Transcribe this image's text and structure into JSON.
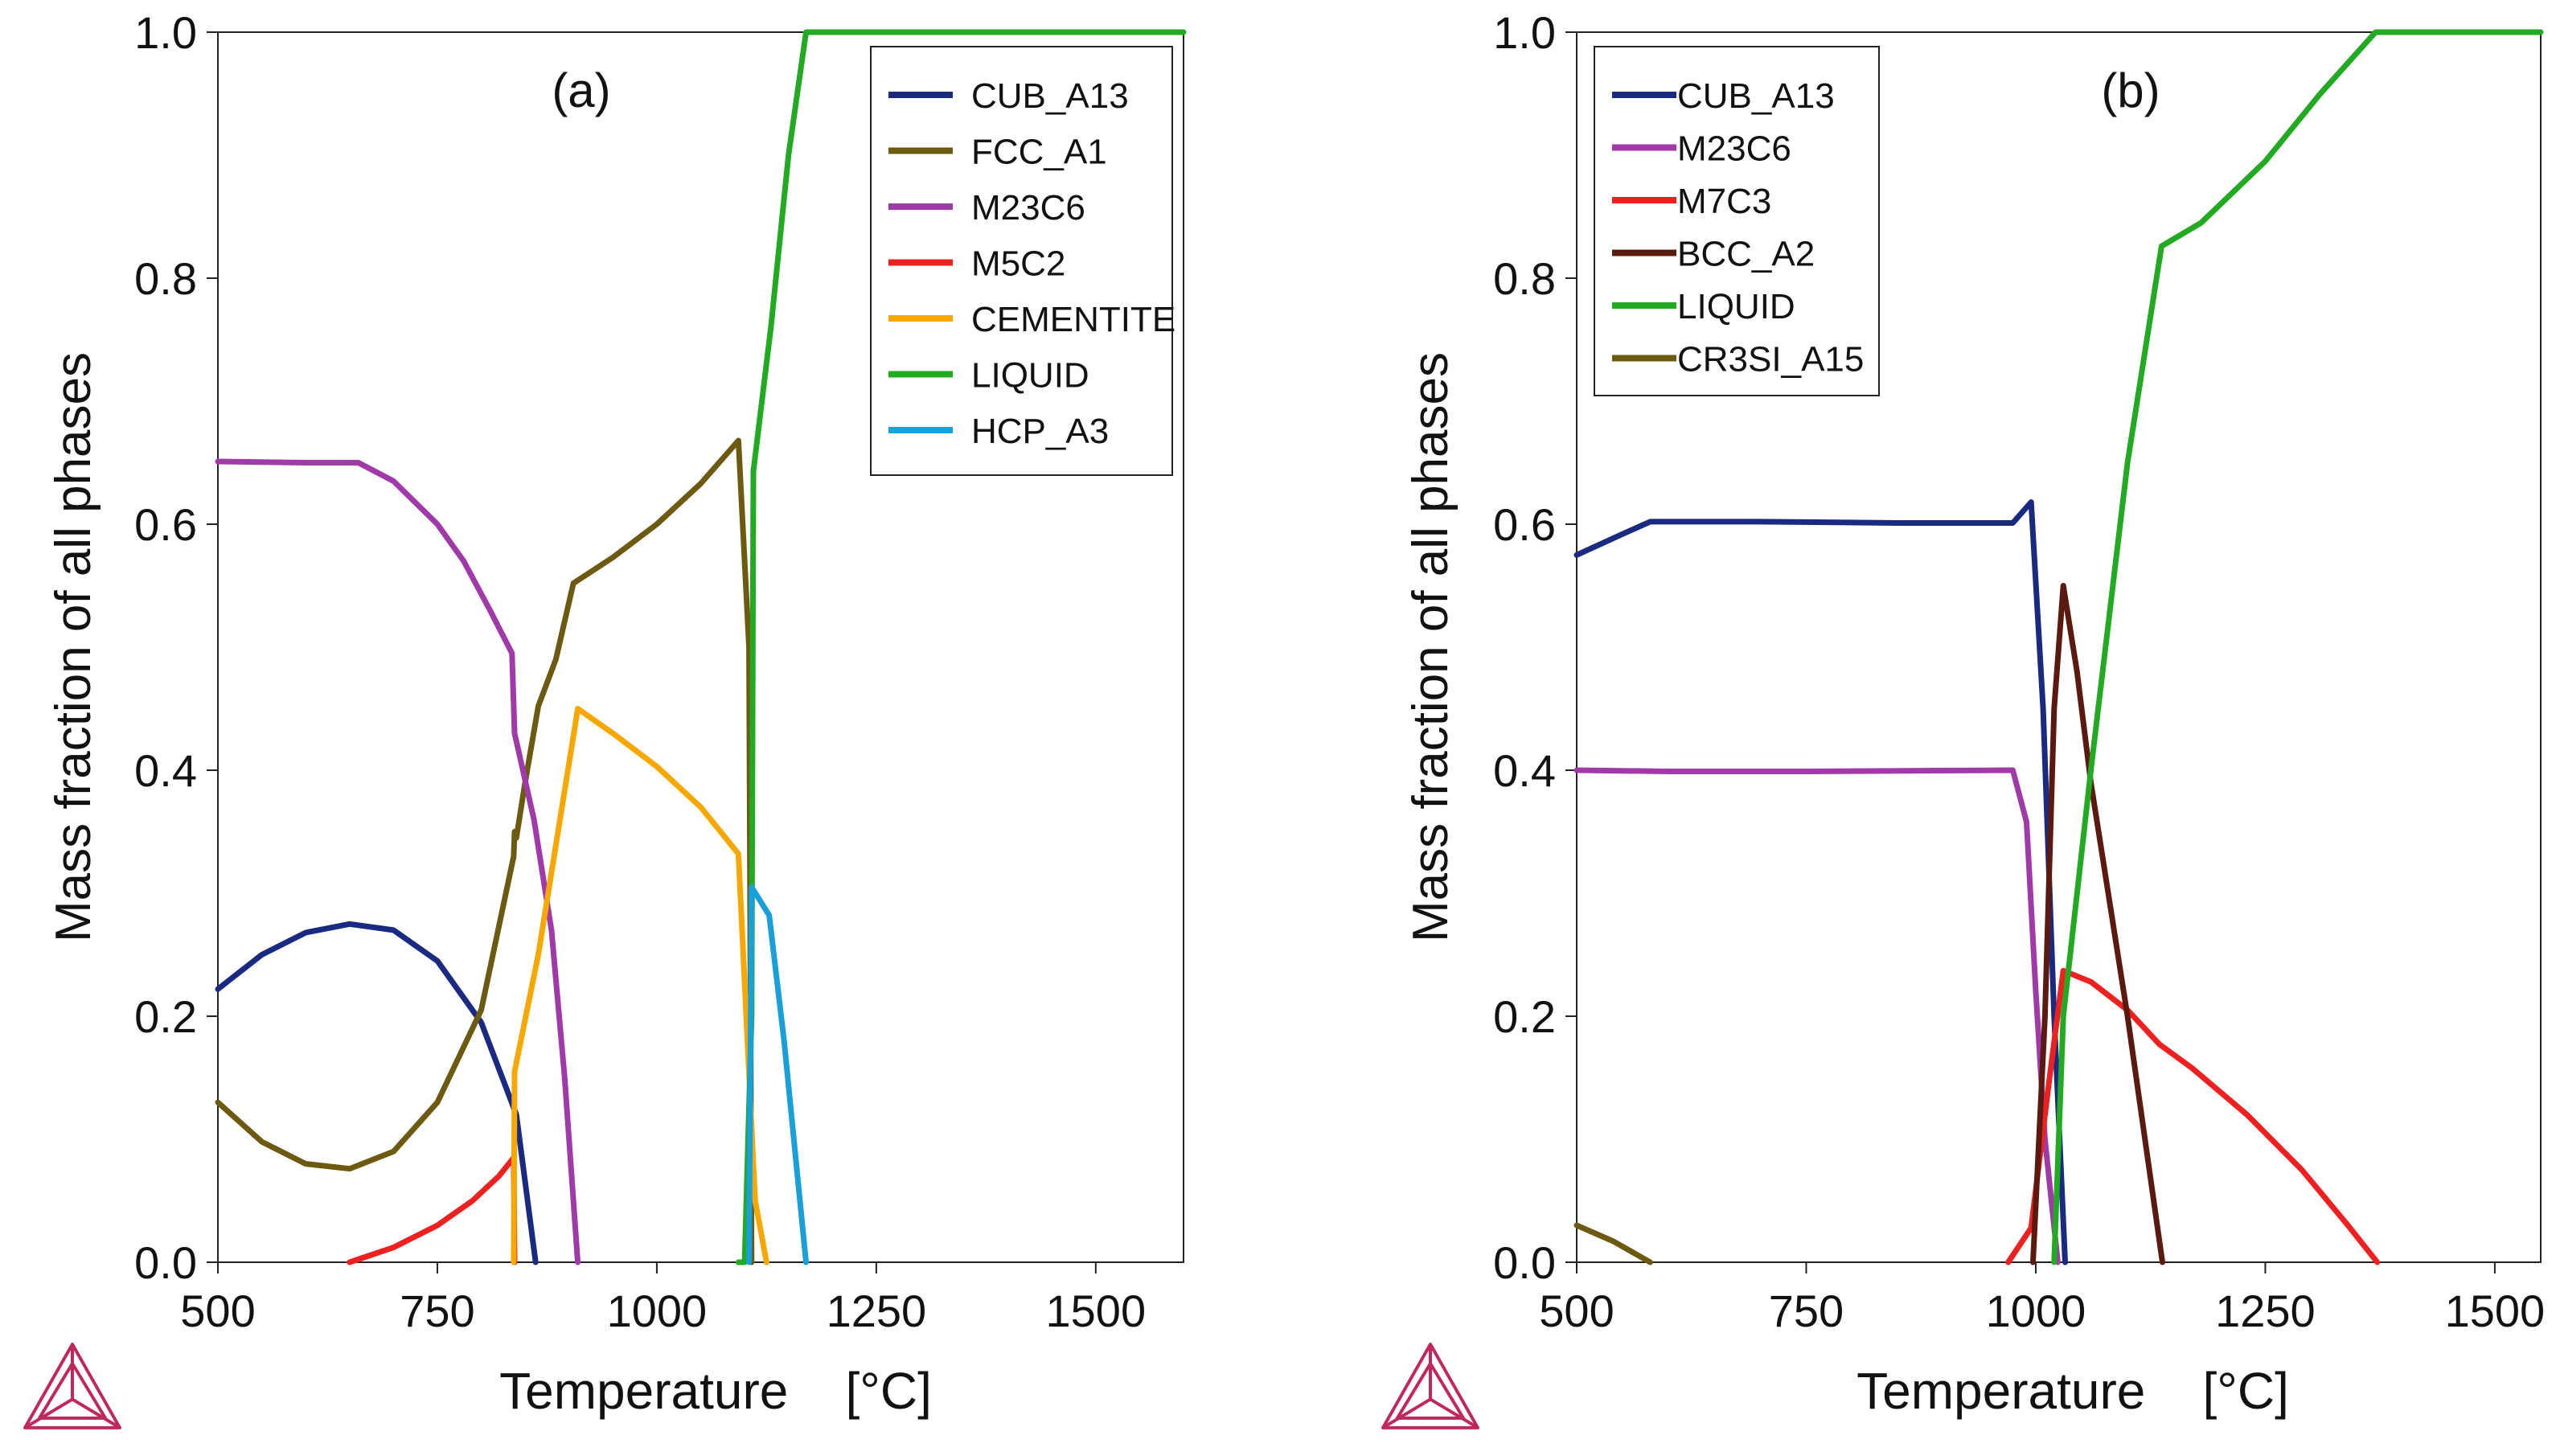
{
  "colors": {
    "CUB_A13": "#1a2a80",
    "FCC_A1": "#6b5a10",
    "M23C6": "#a03aa8",
    "M5C2": "#ee2020",
    "M7C3": "#ee2020",
    "CEMENTITE": "#f6a800",
    "LIQUID": "#22aa22",
    "HCP_A3": "#1aa0d8",
    "BCC_A2": "#5a1a10",
    "CR3SI_A15": "#6b5a10",
    "logo": "#c0285a"
  },
  "chart_data": [
    {
      "type": "line",
      "panel_label": "(a)",
      "xlabel": "Temperature    [°C]",
      "ylabel": "Mass fraction of all phases",
      "xlim": [
        500,
        1600
      ],
      "ylim": [
        0,
        1.0
      ],
      "xticks": [
        "500",
        "750",
        "1000",
        "1250",
        "1500"
      ],
      "xtick_values": [
        500,
        750,
        1000,
        1250,
        1500
      ],
      "yticks": [
        "0.0",
        "0.2",
        "0.4",
        "0.6",
        "0.8",
        "1.0"
      ],
      "ytick_values": [
        0,
        0.2,
        0.4,
        0.6,
        0.8,
        1.0
      ],
      "legend_position": "top-right",
      "series": [
        {
          "name": "CUB_A13",
          "points": [
            [
              500,
              0.222
            ],
            [
              550,
              0.25
            ],
            [
              600,
              0.268
            ],
            [
              650,
              0.275
            ],
            [
              700,
              0.27
            ],
            [
              750,
              0.245
            ],
            [
              800,
              0.195
            ],
            [
              840,
              0.12
            ],
            [
              862,
              0.0
            ]
          ]
        },
        {
          "name": "FCC_A1",
          "points": [
            [
              500,
              0.13
            ],
            [
              550,
              0.098
            ],
            [
              600,
              0.08
            ],
            [
              650,
              0.076
            ],
            [
              700,
              0.09
            ],
            [
              750,
              0.13
            ],
            [
              800,
              0.205
            ],
            [
              837,
              0.33
            ],
            [
              838,
              0.35
            ],
            [
              840,
              0.345
            ],
            [
              850,
              0.39
            ],
            [
              865,
              0.452
            ],
            [
              885,
              0.49
            ],
            [
              905,
              0.552
            ],
            [
              950,
              0.573
            ],
            [
              1000,
              0.6
            ],
            [
              1050,
              0.633
            ],
            [
              1093,
              0.668
            ],
            [
              1105,
              0.5
            ],
            [
              1108,
              0.0
            ]
          ]
        },
        {
          "name": "M23C6",
          "points": [
            [
              500,
              0.651
            ],
            [
              600,
              0.65
            ],
            [
              660,
              0.65
            ],
            [
              700,
              0.635
            ],
            [
              750,
              0.6
            ],
            [
              780,
              0.57
            ],
            [
              810,
              0.53
            ],
            [
              835,
              0.495
            ],
            [
              838,
              0.43
            ],
            [
              860,
              0.36
            ],
            [
              880,
              0.27
            ],
            [
              895,
              0.15
            ],
            [
              910,
              0.0
            ]
          ]
        },
        {
          "name": "M5C2",
          "points": [
            [
              650,
              0.0
            ],
            [
              700,
              0.012
            ],
            [
              750,
              0.03
            ],
            [
              790,
              0.05
            ],
            [
              820,
              0.07
            ],
            [
              837,
              0.085
            ],
            [
              838,
              0.0
            ]
          ]
        },
        {
          "name": "CEMENTITE",
          "points": [
            [
              837,
              0.0
            ],
            [
              838,
              0.155
            ],
            [
              865,
              0.25
            ],
            [
              910,
              0.45
            ],
            [
              950,
              0.43
            ],
            [
              1000,
              0.403
            ],
            [
              1050,
              0.37
            ],
            [
              1093,
              0.332
            ],
            [
              1112,
              0.05
            ],
            [
              1125,
              0.0
            ]
          ]
        },
        {
          "name": "LIQUID",
          "points": [
            [
              1093,
              0.0
            ],
            [
              1100,
              0.0
            ],
            [
              1108,
              0.2
            ],
            [
              1110,
              0.643
            ],
            [
              1130,
              0.76
            ],
            [
              1150,
              0.9
            ],
            [
              1170,
              1.0
            ],
            [
              1600,
              1.0
            ]
          ]
        },
        {
          "name": "HCP_A3",
          "points": [
            [
              1105,
              0.0
            ],
            [
              1108,
              0.305
            ],
            [
              1128,
              0.282
            ],
            [
              1145,
              0.18
            ],
            [
              1170,
              0.0
            ]
          ]
        }
      ]
    },
    {
      "type": "line",
      "panel_label": "(b)",
      "xlabel": "Temperature    [°C]",
      "ylabel": "Mass fraction of all phases",
      "xlim": [
        500,
        1550
      ],
      "ylim": [
        0,
        1.0
      ],
      "xticks": [
        "500",
        "750",
        "1000",
        "1250",
        "1500"
      ],
      "xtick_values": [
        500,
        750,
        1000,
        1250,
        1500
      ],
      "yticks": [
        "0.0",
        "0.2",
        "0.4",
        "0.6",
        "0.8",
        "1.0"
      ],
      "ytick_values": [
        0,
        0.2,
        0.4,
        0.6,
        0.8,
        1.0
      ],
      "legend_position": "top-left",
      "series": [
        {
          "name": "CUB_A13",
          "points": [
            [
              500,
              0.575
            ],
            [
              550,
              0.592
            ],
            [
              580,
              0.602
            ],
            [
              700,
              0.602
            ],
            [
              850,
              0.601
            ],
            [
              975,
              0.601
            ],
            [
              995,
              0.618
            ],
            [
              1008,
              0.45
            ],
            [
              1020,
              0.2
            ],
            [
              1032,
              0.0
            ]
          ]
        },
        {
          "name": "M23C6",
          "points": [
            [
              500,
              0.4
            ],
            [
              600,
              0.399
            ],
            [
              750,
              0.399
            ],
            [
              975,
              0.4
            ],
            [
              990,
              0.358
            ],
            [
              1000,
              0.22
            ],
            [
              1010,
              0.1
            ],
            [
              1024,
              0.0
            ]
          ]
        },
        {
          "name": "M7C3",
          "points": [
            [
              970,
              0.0
            ],
            [
              995,
              0.028
            ],
            [
              1015,
              0.15
            ],
            [
              1030,
              0.237
            ],
            [
              1060,
              0.228
            ],
            [
              1100,
              0.205
            ],
            [
              1135,
              0.177
            ],
            [
              1170,
              0.158
            ],
            [
              1230,
              0.12
            ],
            [
              1290,
              0.075
            ],
            [
              1340,
              0.03
            ],
            [
              1372,
              0.0
            ]
          ]
        },
        {
          "name": "BCC_A2",
          "points": [
            [
              997,
              0.0
            ],
            [
              1010,
              0.2
            ],
            [
              1020,
              0.45
            ],
            [
              1030,
              0.55
            ],
            [
              1045,
              0.48
            ],
            [
              1060,
              0.39
            ],
            [
              1100,
              0.2
            ],
            [
              1138,
              0.0
            ]
          ]
        },
        {
          "name": "LIQUID",
          "points": [
            [
              1020,
              0.0
            ],
            [
              1030,
              0.2
            ],
            [
              1060,
              0.4
            ],
            [
              1100,
              0.65
            ],
            [
              1137,
              0.826
            ],
            [
              1180,
              0.845
            ],
            [
              1250,
              0.895
            ],
            [
              1310,
              0.95
            ],
            [
              1370,
              1.0
            ],
            [
              1550,
              1.0
            ]
          ]
        },
        {
          "name": "CR3SI_A15",
          "points": [
            [
              500,
              0.03
            ],
            [
              540,
              0.017
            ],
            [
              580,
              0.0
            ]
          ]
        }
      ]
    }
  ]
}
